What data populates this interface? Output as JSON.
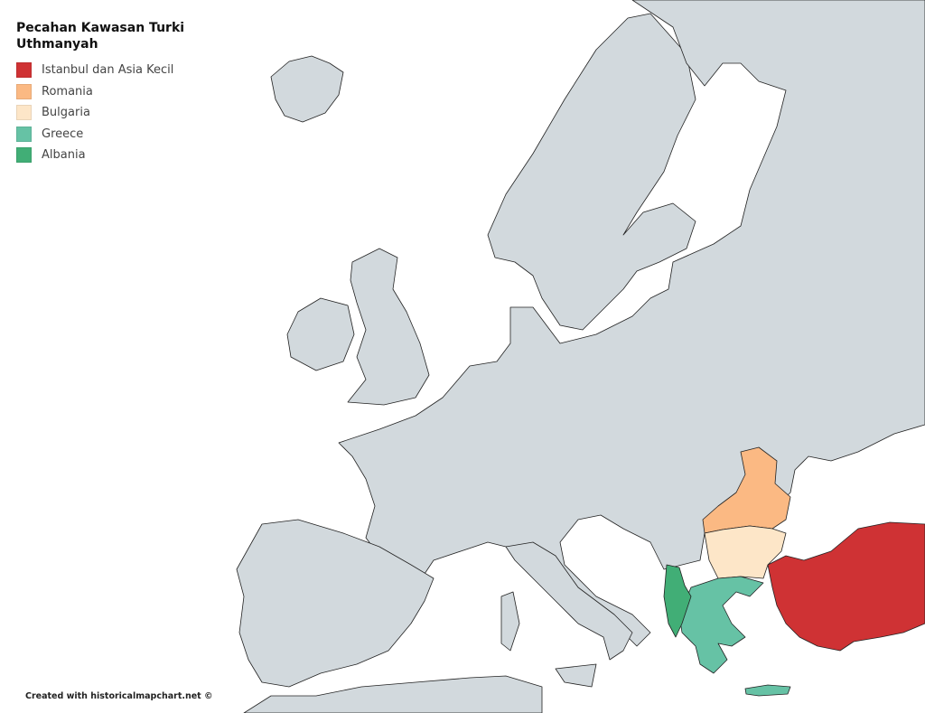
{
  "legend": {
    "title": "Pecahan Kawasan Turki Uthmanyah",
    "items": [
      {
        "label": "Istanbul dan Asia Kecil",
        "color": "#cf3234"
      },
      {
        "label": "Romania",
        "color": "#fbb983"
      },
      {
        "label": "Bulgaria",
        "color": "#fde6c8"
      },
      {
        "label": "Greece",
        "color": "#66c2a5"
      },
      {
        "label": "Albania",
        "color": "#41ae76"
      }
    ]
  },
  "credit": "Created with historicalmapchart.net ©",
  "colors": {
    "land": "#d2d9dd",
    "sea": "#ffffff",
    "border": "#222222"
  }
}
